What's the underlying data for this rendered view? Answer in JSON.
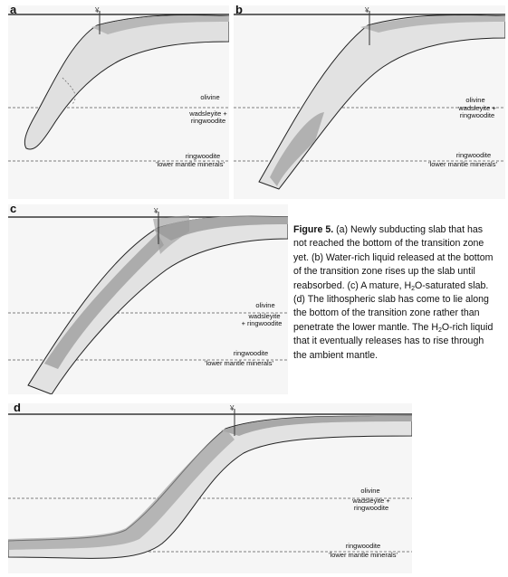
{
  "panels": {
    "a": {
      "letter": "a",
      "olivine": "olivine",
      "wadsleyite": "wadsleyite +",
      "ringwoodite_1": "ringwoodite",
      "ringwoodite_2": "ringwoodite",
      "lower_mantle": "'lower mantle minerals'"
    },
    "b": {
      "letter": "b",
      "olivine": "olivine",
      "wadsleyite": "wadsleyite +",
      "ringwoodite_1": "ringwoodite",
      "ringwoodite_2": "ringwoodite",
      "lower_mantle": "'lower mantle minerals'"
    },
    "c": {
      "letter": "c",
      "olivine": "olivine",
      "wadsleyite": "wadsleyite",
      "ringwoodite_1": "+ ringwoodite",
      "ringwoodite_2": "ringwoodite",
      "lower_mantle": "'lower mantle minerals'"
    },
    "d": {
      "letter": "d",
      "olivine": "olivine",
      "wadsleyite": "wadsleyite +",
      "ringwoodite_1": "ringwoodite",
      "ringwoodite_2": "ringwoodite",
      "lower_mantle": "'lower mantle minerals'"
    }
  },
  "caption": {
    "title": "Figure 5.",
    "part1": "(a) Newly subducting slab that has not reached the bottom of the transition zone yet. (b) Water-rich liquid released at the bottom of the transition zone rises up the slab until reabsorbed. (c) A mature, H",
    "sub1": "2",
    "part2": "O-saturated slab. (d) The lithospheric slab has come to lie along the bottom of the transition zone rather than penetrate the lower mantle. The H",
    "sub2": "2",
    "part3": "O-rich liquid that it eventually releases has to rise through the ambient mantle."
  }
}
